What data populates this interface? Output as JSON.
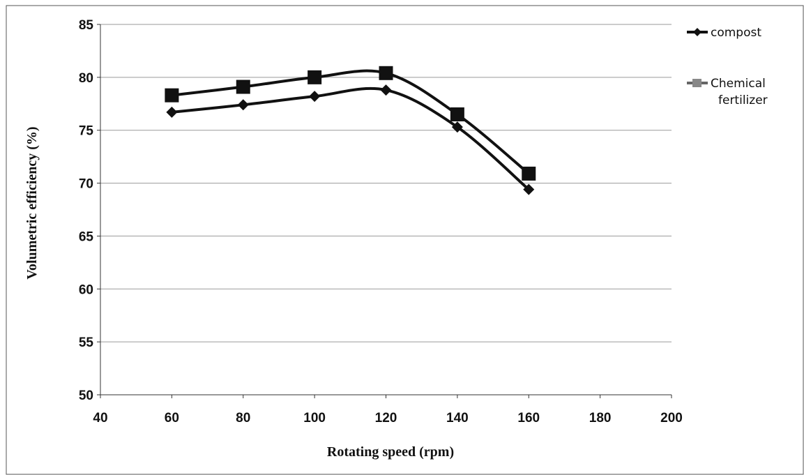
{
  "chart_data": {
    "type": "line",
    "title": "",
    "xlabel": "Rotating speed (rpm)",
    "ylabel": "Volumetric efficiency (%)",
    "xlim": [
      40,
      200
    ],
    "ylim": [
      50,
      85
    ],
    "xticks": [
      "40",
      "60",
      "80",
      "100",
      "120",
      "140",
      "160",
      "180",
      "200"
    ],
    "yticks": [
      "50",
      "55",
      "60",
      "65",
      "70",
      "75",
      "80",
      "85"
    ],
    "grid": "horizontal",
    "legend_position": "right",
    "x": [
      60,
      80,
      100,
      120,
      140,
      160
    ],
    "series": [
      {
        "name": "compost",
        "marker": "diamond",
        "values": [
          76.7,
          77.4,
          78.2,
          78.8,
          75.3,
          69.4
        ]
      },
      {
        "name": "Chemical fertilizer",
        "legend_lines": [
          "Chemical",
          "fertilizer"
        ],
        "marker": "square",
        "values": [
          78.3,
          79.1,
          80.0,
          80.4,
          76.5,
          70.9
        ]
      }
    ]
  }
}
